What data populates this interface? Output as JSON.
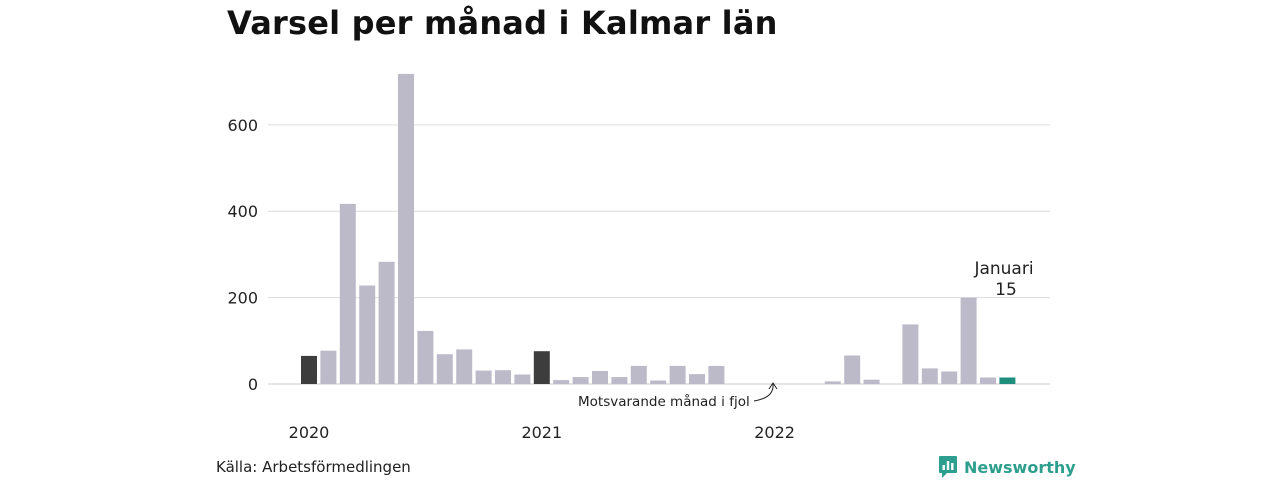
{
  "chart_data": {
    "type": "bar",
    "title": "Varsel per månad i Kalmar län",
    "xlabel": "",
    "ylabel": "",
    "ylim": [
      0,
      720
    ],
    "yticks": [
      0,
      200,
      400,
      600
    ],
    "xtick_labels": [
      {
        "label": "2020",
        "index": 0
      },
      {
        "label": "2021",
        "index": 12
      },
      {
        "label": "2022",
        "index": 24
      }
    ],
    "grid": true,
    "categories": [
      "2020-01",
      "2020-02",
      "2020-03",
      "2020-04",
      "2020-05",
      "2020-06",
      "2020-07",
      "2020-08",
      "2020-09",
      "2020-10",
      "2020-11",
      "2020-12",
      "2021-01",
      "2021-02",
      "2021-03",
      "2021-04",
      "2021-05",
      "2021-06",
      "2021-07",
      "2021-08",
      "2021-09",
      "2021-10",
      "2021-11",
      "2021-12",
      "2022-01",
      "2022-02",
      "2022-03",
      "2022-04",
      "2022-05",
      "2022-06",
      "2022-07",
      "2022-08",
      "2022-09",
      "2022-10",
      "2022-11",
      "2022-12",
      "2023-01"
    ],
    "values": [
      65,
      77,
      417,
      228,
      283,
      718,
      123,
      69,
      80,
      31,
      32,
      22,
      76,
      9,
      16,
      30,
      16,
      42,
      8,
      42,
      23,
      42,
      0,
      0,
      0,
      0,
      0,
      6,
      66,
      10,
      0,
      138,
      36,
      29,
      200,
      15,
      15
    ],
    "highlight": {
      "same_month_previous_years": [
        0,
        12
      ],
      "current": 36
    },
    "colors": {
      "default": "#bcbac9",
      "previous_year_same_month": "#3d3d3d",
      "current": "#1f8e7c",
      "grid": "#dcdcdc",
      "axis": "#cccccc"
    },
    "annotations": {
      "current_month": "Januari",
      "current_value": "15",
      "comparison_note": "Motsvarande månad i fjol"
    }
  },
  "source": "Källa: Arbetsförmedlingen",
  "brand": {
    "name": "Newsworthy",
    "icon": "newsworthy-logo-icon",
    "color": "#2e9f8e"
  }
}
